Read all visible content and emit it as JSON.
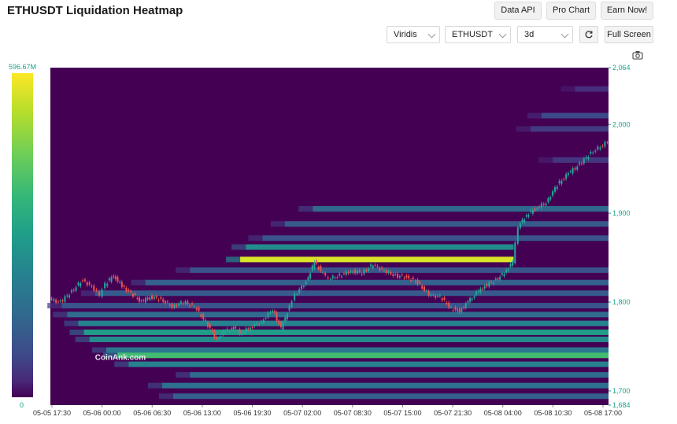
{
  "header": {
    "title": "ETHUSDT Liquidation Heatmap",
    "buttons": [
      "Data API",
      "Pro Chart",
      "Earn Now!"
    ]
  },
  "controls": {
    "colorscale": "Viridis",
    "symbol": "ETHUSDT",
    "range": "3d",
    "refresh_icon": "refresh-icon",
    "fullscreen_label": "Full Screen",
    "camera_icon": "camera-icon"
  },
  "colorbar": {
    "max_label": "596.67M",
    "min_label": "0"
  },
  "watermark": "CoinAnk.com",
  "colors": {
    "low": "#440154",
    "high": "#fde725",
    "up": "#26a69a",
    "down": "#ef5350",
    "axis_text": "#1aa38a"
  },
  "chart_data": {
    "type": "heatmap",
    "title": "ETHUSDT Liquidation Heatmap",
    "x_tick_labels": [
      "05-05 17:30",
      "05-06 00:00",
      "05-06 06:30",
      "05-06 13:00",
      "05-06 19:30",
      "05-07 02:00",
      "05-07 08:30",
      "05-07 15:00",
      "05-07 21:30",
      "05-08 04:00",
      "05-08 10:30",
      "05-08 17:00"
    ],
    "y_tick_labels": [
      "2,064",
      "2,000",
      "1,900",
      "1,800",
      "1,700",
      "1,684"
    ],
    "ylim": [
      1684,
      2064
    ],
    "colorscale": "viridis",
    "color_range": [
      0,
      596670000
    ],
    "bands": [
      {
        "price": 2040,
        "t_start": 0.94,
        "intensity": 0.15
      },
      {
        "price": 2010,
        "t_start": 0.88,
        "intensity": 0.25
      },
      {
        "price": 1995,
        "t_start": 0.86,
        "intensity": 0.2
      },
      {
        "price": 1960,
        "t_start": 0.9,
        "intensity": 0.18
      },
      {
        "price": 1905,
        "t_start": 0.47,
        "intensity": 0.38
      },
      {
        "price": 1888,
        "t_start": 0.42,
        "intensity": 0.32
      },
      {
        "price": 1872,
        "t_start": 0.38,
        "intensity": 0.3
      },
      {
        "price": 1862,
        "t_start": 0.35,
        "intensity": 0.55,
        "t_end": 0.83
      },
      {
        "price": 1848,
        "t_start": 0.34,
        "intensity": 0.97,
        "t_end": 0.83
      },
      {
        "price": 1836,
        "t_start": 0.25,
        "intensity": 0.3
      },
      {
        "price": 1822,
        "t_start": 0.17,
        "intensity": 0.35
      },
      {
        "price": 1810,
        "t_start": 0.08,
        "intensity": 0.32
      },
      {
        "price": 1796,
        "t_start": 0.02,
        "intensity": 0.3
      },
      {
        "price": 1786,
        "t_start": 0.03,
        "intensity": 0.4
      },
      {
        "price": 1776,
        "t_start": 0.05,
        "intensity": 0.5
      },
      {
        "price": 1766,
        "t_start": 0.06,
        "intensity": 0.62
      },
      {
        "price": 1758,
        "t_start": 0.07,
        "intensity": 0.55
      },
      {
        "price": 1746,
        "t_start": 0.1,
        "intensity": 0.45
      },
      {
        "price": 1740,
        "t_start": 0.12,
        "intensity": 0.78
      },
      {
        "price": 1730,
        "t_start": 0.14,
        "intensity": 0.5
      },
      {
        "price": 1718,
        "t_start": 0.25,
        "intensity": 0.4
      },
      {
        "price": 1706,
        "t_start": 0.2,
        "intensity": 0.42
      },
      {
        "price": 1694,
        "t_start": 0.22,
        "intensity": 0.35
      }
    ],
    "price_path": [
      {
        "t": 0.0,
        "p": 1803
      },
      {
        "t": 0.02,
        "p": 1800
      },
      {
        "t": 0.04,
        "p": 1812
      },
      {
        "t": 0.06,
        "p": 1825
      },
      {
        "t": 0.08,
        "p": 1815
      },
      {
        "t": 0.09,
        "p": 1808
      },
      {
        "t": 0.1,
        "p": 1820
      },
      {
        "t": 0.115,
        "p": 1830
      },
      {
        "t": 0.13,
        "p": 1818
      },
      {
        "t": 0.15,
        "p": 1808
      },
      {
        "t": 0.165,
        "p": 1800
      },
      {
        "t": 0.18,
        "p": 1806
      },
      {
        "t": 0.2,
        "p": 1803
      },
      {
        "t": 0.22,
        "p": 1795
      },
      {
        "t": 0.24,
        "p": 1800
      },
      {
        "t": 0.26,
        "p": 1795
      },
      {
        "t": 0.28,
        "p": 1778
      },
      {
        "t": 0.3,
        "p": 1758
      },
      {
        "t": 0.315,
        "p": 1768
      },
      {
        "t": 0.33,
        "p": 1770
      },
      {
        "t": 0.345,
        "p": 1765
      },
      {
        "t": 0.36,
        "p": 1772
      },
      {
        "t": 0.38,
        "p": 1778
      },
      {
        "t": 0.4,
        "p": 1792
      },
      {
        "t": 0.415,
        "p": 1770
      },
      {
        "t": 0.43,
        "p": 1795
      },
      {
        "t": 0.44,
        "p": 1808
      },
      {
        "t": 0.46,
        "p": 1823
      },
      {
        "t": 0.475,
        "p": 1845
      },
      {
        "t": 0.49,
        "p": 1832
      },
      {
        "t": 0.5,
        "p": 1826
      },
      {
        "t": 0.52,
        "p": 1830
      },
      {
        "t": 0.54,
        "p": 1835
      },
      {
        "t": 0.56,
        "p": 1833
      },
      {
        "t": 0.58,
        "p": 1842
      },
      {
        "t": 0.6,
        "p": 1835
      },
      {
        "t": 0.62,
        "p": 1830
      },
      {
        "t": 0.64,
        "p": 1828
      },
      {
        "t": 0.66,
        "p": 1822
      },
      {
        "t": 0.68,
        "p": 1808
      },
      {
        "t": 0.7,
        "p": 1806
      },
      {
        "t": 0.72,
        "p": 1793
      },
      {
        "t": 0.735,
        "p": 1790
      },
      {
        "t": 0.75,
        "p": 1800
      },
      {
        "t": 0.765,
        "p": 1810
      },
      {
        "t": 0.78,
        "p": 1818
      },
      {
        "t": 0.8,
        "p": 1825
      },
      {
        "t": 0.815,
        "p": 1833
      },
      {
        "t": 0.83,
        "p": 1845
      },
      {
        "t": 0.84,
        "p": 1885
      },
      {
        "t": 0.855,
        "p": 1898
      },
      {
        "t": 0.87,
        "p": 1905
      },
      {
        "t": 0.89,
        "p": 1912
      },
      {
        "t": 0.91,
        "p": 1932
      },
      {
        "t": 0.93,
        "p": 1945
      },
      {
        "t": 0.95,
        "p": 1955
      },
      {
        "t": 0.97,
        "p": 1968
      },
      {
        "t": 1.0,
        "p": 1980
      }
    ]
  }
}
